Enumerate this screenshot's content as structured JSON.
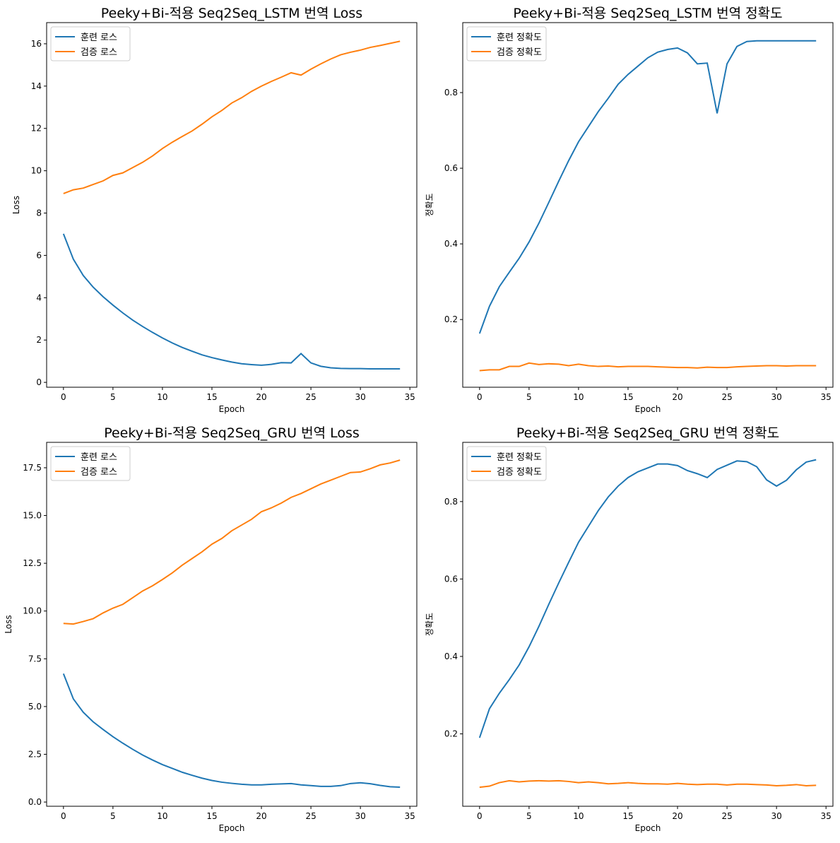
{
  "chart_data": [
    {
      "type": "line",
      "title": "Peeky+Bi-적용 Seq2Seq_LSTM 번역 Loss",
      "xlabel": "Epoch",
      "ylabel": "Loss",
      "x": [
        0,
        1,
        2,
        3,
        4,
        5,
        6,
        7,
        8,
        9,
        10,
        11,
        12,
        13,
        14,
        15,
        16,
        17,
        18,
        19,
        20,
        21,
        22,
        23,
        24,
        25,
        26,
        27,
        28,
        29,
        30,
        31,
        32,
        33,
        34
      ],
      "series": [
        {
          "name": "훈련 로스",
          "color": "#1f77b4",
          "values": [
            7.02,
            5.82,
            5.05,
            4.5,
            4.05,
            3.65,
            3.28,
            2.94,
            2.64,
            2.36,
            2.1,
            1.86,
            1.65,
            1.47,
            1.3,
            1.17,
            1.06,
            0.96,
            0.88,
            0.84,
            0.81,
            0.85,
            0.93,
            0.92,
            1.36,
            0.92,
            0.76,
            0.69,
            0.66,
            0.65,
            0.65,
            0.64,
            0.64,
            0.64,
            0.64
          ]
        },
        {
          "name": "검증 로스",
          "color": "#ff7f0e",
          "values": [
            8.92,
            9.1,
            9.18,
            9.35,
            9.52,
            9.78,
            9.9,
            10.15,
            10.4,
            10.7,
            11.05,
            11.35,
            11.62,
            11.88,
            12.2,
            12.55,
            12.85,
            13.2,
            13.45,
            13.75,
            14.0,
            14.22,
            14.42,
            14.63,
            14.52,
            14.8,
            15.05,
            15.28,
            15.48,
            15.6,
            15.7,
            15.83,
            15.92,
            16.02,
            16.12
          ]
        }
      ],
      "xlim": [
        -1.7,
        35.7
      ],
      "xticks": [
        0,
        5,
        10,
        15,
        20,
        25,
        30,
        35
      ],
      "ylim": [
        -0.23,
        17.0
      ],
      "yticks": [
        0,
        2,
        4,
        6,
        8,
        10,
        12,
        14,
        16
      ],
      "legend": "upper left"
    },
    {
      "type": "line",
      "title": "Peeky+Bi-적용 Seq2Seq_LSTM 번역 정확도",
      "xlabel": "Epoch",
      "ylabel": "정확도",
      "x": [
        0,
        1,
        2,
        3,
        4,
        5,
        6,
        7,
        8,
        9,
        10,
        11,
        12,
        13,
        14,
        15,
        16,
        17,
        18,
        19,
        20,
        21,
        22,
        23,
        24,
        25,
        26,
        27,
        28,
        29,
        30,
        31,
        32,
        33,
        34
      ],
      "series": [
        {
          "name": "훈련 정확도",
          "color": "#1f77b4",
          "values": [
            0.163,
            0.235,
            0.287,
            0.325,
            0.362,
            0.405,
            0.455,
            0.51,
            0.566,
            0.62,
            0.67,
            0.71,
            0.75,
            0.785,
            0.822,
            0.848,
            0.87,
            0.892,
            0.907,
            0.914,
            0.918,
            0.905,
            0.876,
            0.878,
            0.745,
            0.876,
            0.922,
            0.935,
            0.937,
            0.937,
            0.937,
            0.937,
            0.937,
            0.937,
            0.937
          ]
        },
        {
          "name": "검증 정확도",
          "color": "#ff7f0e",
          "values": [
            0.065,
            0.067,
            0.067,
            0.076,
            0.076,
            0.085,
            0.081,
            0.083,
            0.082,
            0.078,
            0.082,
            0.078,
            0.076,
            0.077,
            0.075,
            0.076,
            0.076,
            0.076,
            0.075,
            0.074,
            0.073,
            0.073,
            0.072,
            0.074,
            0.073,
            0.073,
            0.075,
            0.076,
            0.077,
            0.078,
            0.078,
            0.077,
            0.078,
            0.078,
            0.078
          ]
        }
      ],
      "xlim": [
        -1.7,
        35.7
      ],
      "xticks": [
        0,
        5,
        10,
        15,
        20,
        25,
        30,
        35
      ],
      "ylim": [
        0.021,
        0.985
      ],
      "yticks": [
        0.2,
        0.4,
        0.6,
        0.8
      ],
      "legend": "upper left"
    },
    {
      "type": "line",
      "title": "Peeky+Bi-적용 Seq2Seq_GRU 번역 Loss",
      "xlabel": "Epoch",
      "ylabel": "Loss",
      "x": [
        0,
        1,
        2,
        3,
        4,
        5,
        6,
        7,
        8,
        9,
        10,
        11,
        12,
        13,
        14,
        15,
        16,
        17,
        18,
        19,
        20,
        21,
        22,
        23,
        24,
        25,
        26,
        27,
        28,
        29,
        30,
        31,
        32,
        33,
        34
      ],
      "series": [
        {
          "name": "훈련 로스",
          "color": "#1f77b4",
          "values": [
            6.72,
            5.4,
            4.7,
            4.2,
            3.8,
            3.42,
            3.08,
            2.76,
            2.46,
            2.2,
            1.96,
            1.76,
            1.56,
            1.4,
            1.25,
            1.13,
            1.04,
            0.98,
            0.93,
            0.9,
            0.9,
            0.93,
            0.95,
            0.97,
            0.9,
            0.86,
            0.82,
            0.82,
            0.86,
            0.97,
            1.01,
            0.96,
            0.87,
            0.8,
            0.78
          ]
        },
        {
          "name": "검증 로스",
          "color": "#ff7f0e",
          "values": [
            9.35,
            9.32,
            9.45,
            9.6,
            9.9,
            10.15,
            10.35,
            10.7,
            11.05,
            11.32,
            11.65,
            12.0,
            12.4,
            12.75,
            13.1,
            13.5,
            13.8,
            14.2,
            14.5,
            14.8,
            15.2,
            15.4,
            15.65,
            15.95,
            16.15,
            16.4,
            16.65,
            16.85,
            17.05,
            17.25,
            17.28,
            17.45,
            17.65,
            17.75,
            17.9
          ]
        }
      ],
      "xlim": [
        -1.7,
        35.7
      ],
      "xticks": [
        0,
        5,
        10,
        15,
        20,
        25,
        30,
        35
      ],
      "ylim": [
        -0.22,
        18.83
      ],
      "yticks": [
        {
          "value": 0,
          "label": "0.0"
        },
        2.5,
        {
          "value": 5,
          "label": "5.0"
        },
        7.5,
        {
          "value": 10,
          "label": "10.0"
        },
        12.5,
        {
          "value": 15,
          "label": "15.0"
        },
        17.5
      ],
      "legend": "upper left"
    },
    {
      "type": "line",
      "title": "Peeky+Bi-적용 Seq2Seq_GRU 번역 정확도",
      "xlabel": "Epoch",
      "ylabel": "정확도",
      "x": [
        0,
        1,
        2,
        3,
        4,
        5,
        6,
        7,
        8,
        9,
        10,
        11,
        12,
        13,
        14,
        15,
        16,
        17,
        18,
        19,
        20,
        21,
        22,
        23,
        24,
        25,
        26,
        27,
        28,
        29,
        30,
        31,
        32,
        33,
        34
      ],
      "series": [
        {
          "name": "훈련 정확도",
          "color": "#1f77b4",
          "values": [
            0.19,
            0.265,
            0.305,
            0.34,
            0.378,
            0.425,
            0.478,
            0.535,
            0.59,
            0.643,
            0.695,
            0.736,
            0.777,
            0.812,
            0.84,
            0.862,
            0.877,
            0.887,
            0.897,
            0.897,
            0.893,
            0.88,
            0.872,
            0.862,
            0.883,
            0.894,
            0.905,
            0.903,
            0.89,
            0.856,
            0.84,
            0.855,
            0.882,
            0.902,
            0.908
          ]
        },
        {
          "name": "검증 정확도",
          "color": "#ff7f0e",
          "values": [
            0.062,
            0.065,
            0.074,
            0.079,
            0.076,
            0.078,
            0.079,
            0.078,
            0.079,
            0.077,
            0.074,
            0.076,
            0.074,
            0.071,
            0.072,
            0.074,
            0.072,
            0.071,
            0.071,
            0.07,
            0.072,
            0.07,
            0.069,
            0.07,
            0.07,
            0.068,
            0.07,
            0.07,
            0.069,
            0.068,
            0.066,
            0.067,
            0.069,
            0.066,
            0.067
          ]
        }
      ],
      "xlim": [
        -1.7,
        35.7
      ],
      "xticks": [
        0,
        5,
        10,
        15,
        20,
        25,
        30,
        35
      ],
      "ylim": [
        0.013,
        0.953
      ],
      "yticks": [
        0.2,
        0.4,
        0.6,
        0.8
      ],
      "legend": "upper left"
    }
  ]
}
